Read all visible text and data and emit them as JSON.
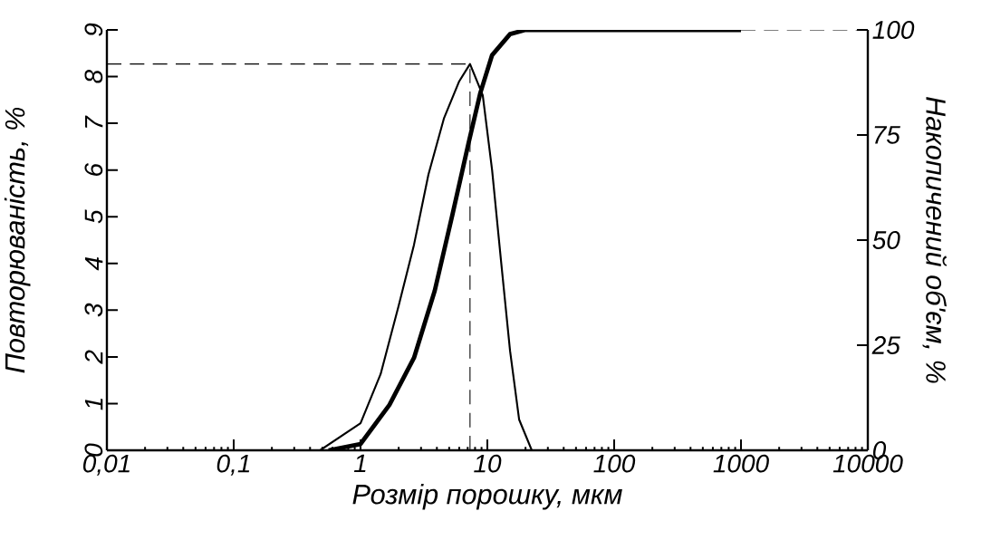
{
  "chart_data": {
    "type": "line",
    "xlabel": "Розмір порошку, мкм",
    "ylabel": "Повторюваність, %",
    "y2label": "Накопичений об'єм, %",
    "log": "x",
    "grid": false,
    "xlim": [
      0.01,
      10000
    ],
    "xticks": [
      {
        "value": 0.01,
        "label": "0,01"
      },
      {
        "value": 0.1,
        "label": "0,1"
      },
      1,
      10,
      100,
      1000,
      10000
    ],
    "ylim": [
      0,
      9
    ],
    "yticks": [
      0,
      1,
      2,
      3,
      4,
      5,
      6,
      7,
      8,
      9
    ],
    "y2lim": [
      0,
      100
    ],
    "y2ticks": [
      0,
      25,
      50,
      75,
      100
    ],
    "series": [
      {
        "color": "#000000",
        "x": [
          0.48,
          1.0,
          1.44,
          2.0,
          2.64,
          3.43,
          4.54,
          6.0,
          7.3,
          9.2,
          10.9,
          12.8,
          15.1,
          17.8,
          22.4
        ],
        "values": [
          0,
          0.58,
          1.63,
          3.1,
          4.4,
          5.9,
          7.1,
          7.9,
          8.27,
          7.6,
          6.0,
          4.07,
          2.13,
          0.66,
          0
        ]
      },
      {
        "color": "#000000",
        "axis": "y2",
        "x": [
          0.56,
          1.0,
          1.69,
          2.64,
          3.85,
          5.3,
          7.1,
          8.8,
          10.9,
          15.1,
          20,
          1000
        ],
        "values": [
          0,
          1.5,
          10.8,
          22,
          38,
          56,
          73,
          85,
          94,
          99,
          100,
          100
        ]
      }
    ],
    "ref_lines": [
      {
        "axis": "y",
        "value": 8.27,
        "color": "#000000",
        "line_style": "dashed"
      },
      {
        "axis": "x",
        "value": 7.3,
        "color": "#000000",
        "line_style": "dashed"
      },
      {
        "axis": "y2",
        "value": 100,
        "color": "#000000",
        "line_style": "dashed"
      }
    ]
  }
}
